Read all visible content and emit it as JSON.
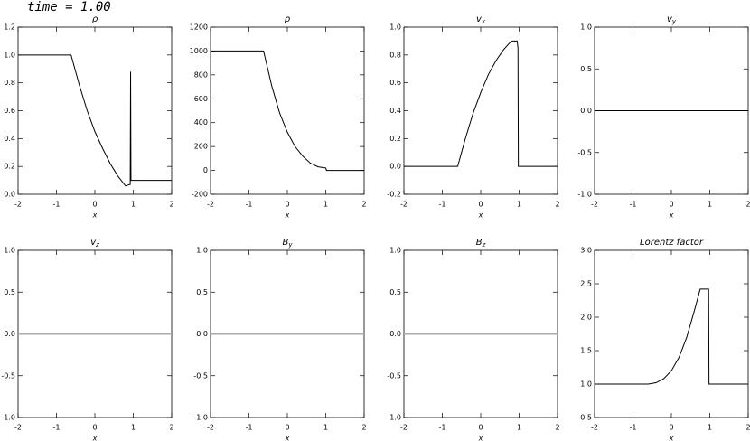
{
  "caption": "time = 1.00",
  "chart_data": [
    {
      "type": "line",
      "title": "ρ",
      "xlabel": "x",
      "x": [
        -2,
        -0.62,
        -0.4,
        -0.2,
        0,
        0.2,
        0.4,
        0.6,
        0.8,
        0.9,
        0.92,
        0.93,
        0.94,
        2
      ],
      "series": [
        {
          "color": "#000000",
          "values": [
            1,
            1,
            0.78,
            0.6,
            0.45,
            0.33,
            0.22,
            0.13,
            0.06,
            0.07,
            0.07,
            0.88,
            0.1,
            0.1
          ]
        }
      ],
      "xlim": [
        -2,
        2
      ],
      "xticks": [
        -2,
        -1,
        0,
        1,
        2
      ],
      "ylim": [
        0,
        1.2
      ],
      "yticks": [
        {
          "value": 0,
          "label": "0.0"
        },
        {
          "value": 0.2,
          "label": "0.2"
        },
        {
          "value": 0.4,
          "label": "0.4"
        },
        {
          "value": 0.6,
          "label": "0.6"
        },
        {
          "value": 0.8,
          "label": "0.8"
        },
        {
          "value": 1,
          "label": "1.0"
        },
        {
          "value": 1.2,
          "label": "1.2"
        }
      ]
    },
    {
      "type": "line",
      "title": "p",
      "xlabel": "x",
      "x": [
        -2,
        -0.62,
        -0.4,
        -0.2,
        0,
        0.2,
        0.4,
        0.6,
        0.8,
        0.9,
        1.0,
        1.02,
        2
      ],
      "series": [
        {
          "color": "#000000",
          "values": [
            1000,
            1000,
            700,
            480,
            320,
            200,
            120,
            60,
            30,
            25,
            20,
            0,
            0
          ]
        }
      ],
      "xlim": [
        -2,
        2
      ],
      "xticks": [
        -2,
        -1,
        0,
        1,
        2
      ],
      "ylim": [
        -200,
        1200
      ],
      "yticks": [
        -200,
        0,
        200,
        400,
        600,
        800,
        1000,
        1200
      ]
    },
    {
      "type": "line",
      "title": "v",
      "title_subscript": "x",
      "xlabel": "x",
      "x": [
        -2,
        -0.6,
        -0.4,
        -0.2,
        0,
        0.2,
        0.4,
        0.6,
        0.8,
        0.95,
        0.97,
        0.98,
        2
      ],
      "series": [
        {
          "color": "#000000",
          "values": [
            0,
            0,
            0.2,
            0.38,
            0.53,
            0.66,
            0.76,
            0.84,
            0.9,
            0.9,
            0.85,
            0,
            0
          ]
        }
      ],
      "xlim": [
        -2,
        2
      ],
      "xticks": [
        -2,
        -1,
        0,
        1,
        2
      ],
      "ylim": [
        -0.2,
        1.0
      ],
      "yticks": [
        {
          "value": -0.2,
          "label": "-0.2"
        },
        {
          "value": 0,
          "label": "0.0"
        },
        {
          "value": 0.2,
          "label": "0.2"
        },
        {
          "value": 0.4,
          "label": "0.4"
        },
        {
          "value": 0.6,
          "label": "0.6"
        },
        {
          "value": 0.8,
          "label": "0.8"
        },
        {
          "value": 1,
          "label": "1.0"
        }
      ]
    },
    {
      "type": "line",
      "title": "v",
      "title_subscript": "y",
      "xlabel": "x",
      "x": [
        -2,
        2
      ],
      "series": [
        {
          "color": "#000000",
          "values": [
            0,
            0
          ]
        }
      ],
      "xlim": [
        -2,
        2
      ],
      "xticks": [
        -2,
        -1,
        0,
        1,
        2
      ],
      "ylim": [
        -1,
        1
      ],
      "yticks": [
        {
          "value": -1,
          "label": "-1.0"
        },
        {
          "value": -0.5,
          "label": "-0.5"
        },
        {
          "value": 0,
          "label": "0.0"
        },
        {
          "value": 0.5,
          "label": "0.5"
        },
        {
          "value": 1,
          "label": "1.0"
        }
      ]
    },
    {
      "type": "line",
      "title": "v",
      "title_subscript": "z",
      "xlabel": "x",
      "x": [
        -2,
        2
      ],
      "series": [
        {
          "color": "#aaaaaa",
          "values": [
            0,
            0
          ]
        }
      ],
      "xlim": [
        -2,
        2
      ],
      "xticks": [
        -2,
        -1,
        0,
        1,
        2
      ],
      "ylim": [
        -1,
        1
      ],
      "yticks": [
        {
          "value": -1,
          "label": "-1.0"
        },
        {
          "value": -0.5,
          "label": "-0.5"
        },
        {
          "value": 0,
          "label": "0.0"
        },
        {
          "value": 0.5,
          "label": "0.5"
        },
        {
          "value": 1,
          "label": "1.0"
        }
      ]
    },
    {
      "type": "line",
      "title": "B",
      "title_subscript": "y",
      "xlabel": "x",
      "x": [
        -2,
        2
      ],
      "series": [
        {
          "color": "#aaaaaa",
          "values": [
            0,
            0
          ]
        }
      ],
      "xlim": [
        -2,
        2
      ],
      "xticks": [
        -2,
        -1,
        0,
        1,
        2
      ],
      "ylim": [
        -1,
        1
      ],
      "yticks": [
        {
          "value": -1,
          "label": "-1.0"
        },
        {
          "value": -0.5,
          "label": "-0.5"
        },
        {
          "value": 0,
          "label": "0.0"
        },
        {
          "value": 0.5,
          "label": "0.5"
        },
        {
          "value": 1,
          "label": "1.0"
        }
      ]
    },
    {
      "type": "line",
      "title": "B",
      "title_subscript": "z",
      "xlabel": "x",
      "x": [
        -2,
        2
      ],
      "series": [
        {
          "color": "#aaaaaa",
          "values": [
            0,
            0
          ]
        }
      ],
      "xlim": [
        -2,
        2
      ],
      "xticks": [
        -2,
        -1,
        0,
        1,
        2
      ],
      "ylim": [
        -1,
        1
      ],
      "yticks": [
        {
          "value": -1,
          "label": "-1.0"
        },
        {
          "value": -0.5,
          "label": "-0.5"
        },
        {
          "value": 0,
          "label": "0.0"
        },
        {
          "value": 0.5,
          "label": "0.5"
        },
        {
          "value": 1,
          "label": "1.0"
        }
      ]
    },
    {
      "type": "line",
      "title": "Lorentz factor",
      "xlabel": "x",
      "x": [
        -2,
        -0.6,
        -0.4,
        -0.2,
        0,
        0.2,
        0.4,
        0.6,
        0.75,
        0.97,
        0.98,
        2
      ],
      "series": [
        {
          "color": "#000000",
          "values": [
            1,
            1,
            1.02,
            1.08,
            1.2,
            1.4,
            1.7,
            2.1,
            2.42,
            2.42,
            1.0,
            1.0
          ]
        }
      ],
      "xlim": [
        -2,
        2
      ],
      "xticks": [
        -2,
        -1,
        0,
        1,
        2
      ],
      "ylim": [
        0.5,
        3.0
      ],
      "yticks": [
        {
          "value": 0.5,
          "label": "0.5"
        },
        {
          "value": 1,
          "label": "1.0"
        },
        {
          "value": 1.5,
          "label": "1.5"
        },
        {
          "value": 2,
          "label": "2.0"
        },
        {
          "value": 2.5,
          "label": "2.5"
        },
        {
          "value": 3,
          "label": "3.0"
        }
      ]
    }
  ]
}
